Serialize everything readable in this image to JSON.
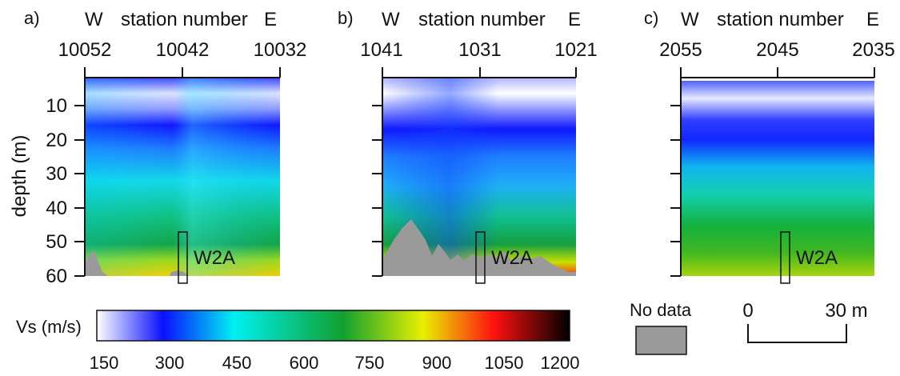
{
  "panels": [
    {
      "letter": "a)",
      "west": "W",
      "east": "E",
      "axis_title": "station number",
      "stations": [
        "10052",
        "10042",
        "10032"
      ],
      "well_label": "W2A",
      "well_station": "10041",
      "nodata_fraction": 0.05
    },
    {
      "letter": "b)",
      "west": "W",
      "east": "E",
      "axis_title": "station number",
      "stations": [
        "1041",
        "1031",
        "1021"
      ],
      "well_label": "W2A",
      "well_station": "1031",
      "nodata_fraction": 0.2
    },
    {
      "letter": "c)",
      "west": "W",
      "east": "E",
      "axis_title": "station number",
      "stations": [
        "2055",
        "2045",
        "2035"
      ],
      "well_label": "W2A",
      "well_station": "2045",
      "nodata_fraction": 0.0
    }
  ],
  "depth_axis": {
    "label": "depth (m)",
    "ticks": [
      "10",
      "20",
      "30",
      "40",
      "50",
      "60"
    ],
    "range_m": [
      2,
      60
    ]
  },
  "colorbar": {
    "label": "Vs (m/s)",
    "ticks": [
      "150",
      "300",
      "450",
      "600",
      "750",
      "900",
      "1050",
      "1200"
    ],
    "range": [
      150,
      1200
    ],
    "colors": [
      "#ffffff",
      "#0a10ff",
      "#00f0f0",
      "#10a030",
      "#e0f000",
      "#ff1010",
      "#000000"
    ]
  },
  "legend": {
    "nodata_label": "No data",
    "nodata_color": "#9a9a9a"
  },
  "scalebar": {
    "start_label": "0",
    "end_label": "30 m"
  }
}
